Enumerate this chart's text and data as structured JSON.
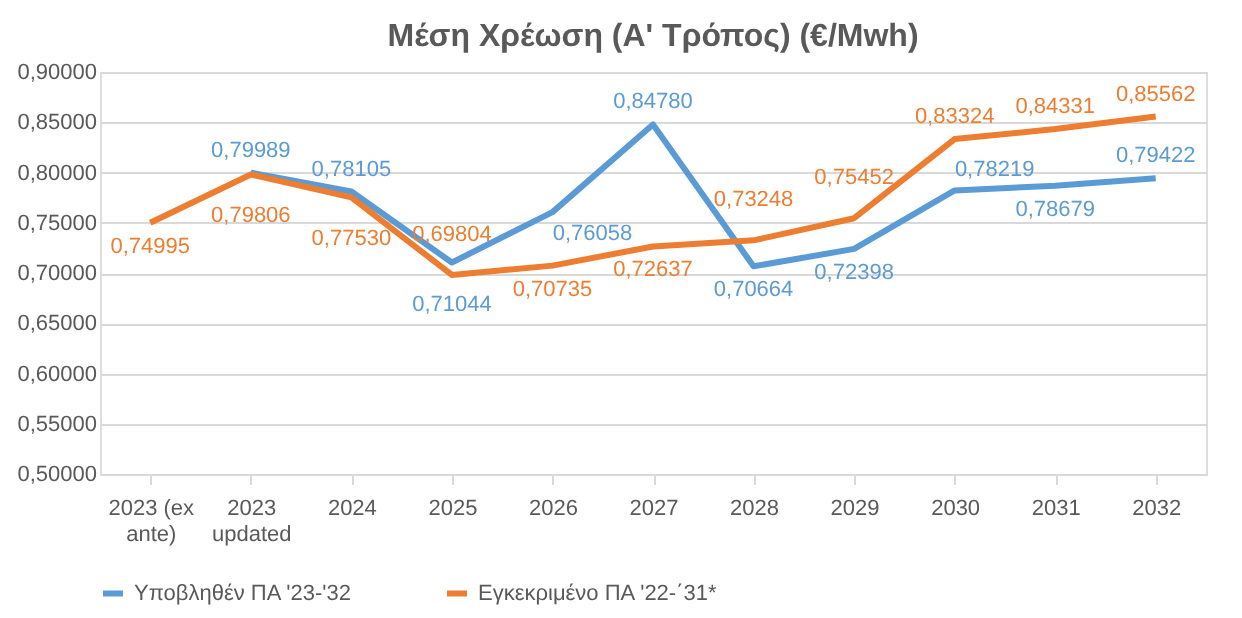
{
  "chart_data": {
    "type": "line",
    "title": "Μέση Χρέωση (Α' Τρόπος) (€/Mwh)",
    "categories": [
      "2023 (ex ante)",
      "2023 updated",
      "2024",
      "2025",
      "2026",
      "2027",
      "2028",
      "2029",
      "2030",
      "2031",
      "2032"
    ],
    "series": [
      {
        "name": "Υποβληθέν ΠΑ '23-'32",
        "color": "#5b9bd5",
        "values": [
          null,
          0.79989,
          0.78105,
          0.71044,
          0.76058,
          0.8478,
          0.70664,
          0.72398,
          0.78219,
          0.78679,
          0.79422
        ],
        "value_labels": [
          null,
          "0,79989",
          "0,78105",
          "0,71044",
          "0,76058",
          "0,84780",
          "0,70664",
          "0,72398",
          "0,78219",
          "0,78679",
          "0,79422"
        ]
      },
      {
        "name": "Εγκεκριμένο ΠΑ '22-΄31*",
        "color": "#ed7d31",
        "values": [
          0.74995,
          0.79806,
          0.7753,
          0.69804,
          0.70735,
          0.72637,
          0.73248,
          0.75452,
          0.83324,
          0.84331,
          0.85562
        ],
        "value_labels": [
          "0,74995",
          "0,79806",
          "0,77530",
          "0,69804",
          "0,70735",
          "0,72637",
          "0,73248",
          "0,75452",
          "0,83324",
          "0,84331",
          "0,85562"
        ]
      }
    ],
    "ylim": [
      0.5,
      0.9
    ],
    "yticks": [
      {
        "value": 0.5,
        "label": "0,50000"
      },
      {
        "value": 0.55,
        "label": "0,55000"
      },
      {
        "value": 0.6,
        "label": "0,60000"
      },
      {
        "value": 0.65,
        "label": "0,65000"
      },
      {
        "value": 0.7,
        "label": "0,70000"
      },
      {
        "value": 0.75,
        "label": "0,75000"
      },
      {
        "value": 0.8,
        "label": "0,80000"
      },
      {
        "value": 0.85,
        "label": "0,85000"
      },
      {
        "value": 0.9,
        "label": "0,90000"
      }
    ],
    "grid": "y",
    "legend": "bottom",
    "marker": "none",
    "line_style": "solid"
  }
}
